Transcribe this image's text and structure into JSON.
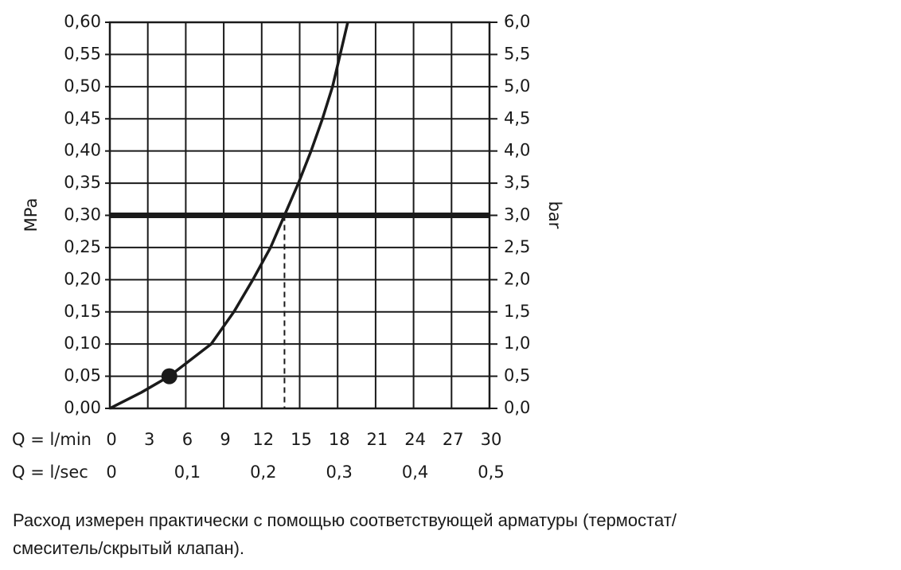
{
  "chart_data": {
    "type": "line",
    "x_label": "Q = l/min",
    "x2_label": "Q = l/sec",
    "y_label": "MPa",
    "y2_label": "bar",
    "caption": [
      "Расход измерен практически с помощью соответствующей арматуры (термостат/",
      "смеситель/скрытый клапан)."
    ],
    "x": [
      0,
      2.5,
      4.7,
      8.0,
      9.8,
      11.3,
      12.7,
      13.8,
      14.9,
      15.9,
      16.8,
      17.6,
      18.2,
      18.8
    ],
    "values": [
      0,
      0.025,
      0.05,
      0.1,
      0.15,
      0.2,
      0.25,
      0.3,
      0.35,
      0.4,
      0.45,
      0.5,
      0.55,
      0.6
    ],
    "color": "#1a1a1a",
    "marker": {
      "x": 4.7,
      "y": 0.05
    },
    "reference_y": 0.3,
    "reference_x": 13.8,
    "xlim": [
      0,
      30
    ],
    "xticks": [
      0,
      3,
      6,
      9,
      12,
      15,
      18,
      21,
      24,
      27,
      30
    ],
    "x2lim": [
      0,
      0.5
    ],
    "x2ticks": [
      0,
      {
        "value": 0.1,
        "label": "0,1"
      },
      {
        "value": 0.2,
        "label": "0,2"
      },
      {
        "value": 0.3,
        "label": "0,3"
      },
      {
        "value": 0.4,
        "label": "0,4"
      },
      {
        "value": 0.5,
        "label": "0,5"
      }
    ],
    "ylim": [
      0,
      0.6
    ],
    "yticks": [
      {
        "value": 0,
        "label": "0,00"
      },
      {
        "value": 0.05,
        "label": "0,05"
      },
      {
        "value": 0.1,
        "label": "0,10"
      },
      {
        "value": 0.15,
        "label": "0,15"
      },
      {
        "value": 0.2,
        "label": "0,20"
      },
      {
        "value": 0.25,
        "label": "0,25"
      },
      {
        "value": 0.3,
        "label": "0,30"
      },
      {
        "value": 0.35,
        "label": "0,35"
      },
      {
        "value": 0.4,
        "label": "0,40"
      },
      {
        "value": 0.45,
        "label": "0,45"
      },
      {
        "value": 0.5,
        "label": "0,50"
      },
      {
        "value": 0.55,
        "label": "0,55"
      },
      {
        "value": 0.6,
        "label": "0,60"
      }
    ],
    "y2lim": [
      0,
      6
    ],
    "y2ticks": [
      {
        "value": 0,
        "label": "0,0"
      },
      {
        "value": 0.5,
        "label": "0,5"
      },
      {
        "value": 1,
        "label": "1,0"
      },
      {
        "value": 1.5,
        "label": "1,5"
      },
      {
        "value": 2,
        "label": "2,0"
      },
      {
        "value": 2.5,
        "label": "2,5"
      },
      {
        "value": 3,
        "label": "3,0"
      },
      {
        "value": 3.5,
        "label": "3,5"
      },
      {
        "value": 4,
        "label": "4,0"
      },
      {
        "value": 4.5,
        "label": "4,5"
      },
      {
        "value": 5,
        "label": "5,0"
      },
      {
        "value": 5.5,
        "label": "5,5"
      },
      {
        "value": 6,
        "label": "6,0"
      }
    ],
    "grid": true
  }
}
